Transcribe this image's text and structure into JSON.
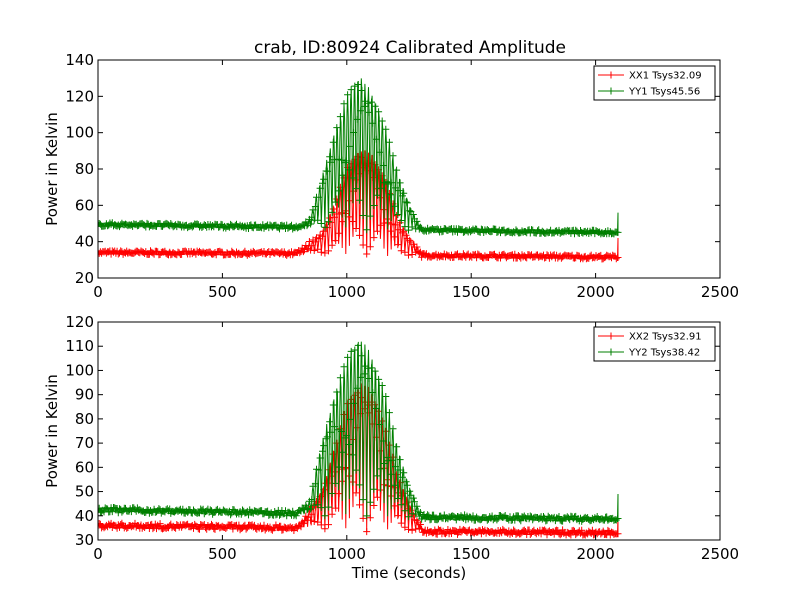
{
  "title": "crab, ID:80924 Calibrated Amplitude",
  "colors": {
    "xx": "#ff0000",
    "yy": "#007f00"
  },
  "chart_data": [
    {
      "type": "line",
      "title": "crab, ID:80924 Calibrated Amplitude",
      "xlabel": "",
      "ylabel": "Power in Kelvin",
      "xlim": [
        0,
        2500
      ],
      "ylim": [
        20,
        140
      ],
      "xticks": [
        0,
        500,
        1000,
        1500,
        2000,
        2500
      ],
      "yticks": [
        20,
        40,
        60,
        80,
        100,
        120,
        140
      ],
      "legend_position": "top-right",
      "grid": false,
      "x_range": [
        0,
        2090
      ],
      "transit_window": [
        800,
        1300
      ],
      "series": [
        {
          "name": "XX1 Tsys32.09",
          "color": "#ff0000",
          "marker": "+",
          "baseline": [
            [
              0,
              34
            ],
            [
              800,
              33.5
            ],
            [
              1300,
              32.5
            ],
            [
              2090,
              31.5
            ]
          ],
          "peak_envelope": [
            [
              800,
              34
            ],
            [
              900,
              45
            ],
            [
              950,
              60
            ],
            [
              1000,
              80
            ],
            [
              1050,
              91
            ],
            [
              1100,
              88
            ],
            [
              1150,
              75
            ],
            [
              1200,
              55
            ],
            [
              1250,
              42
            ],
            [
              1300,
              34
            ]
          ],
          "end_spike": [
            2090,
            42
          ]
        },
        {
          "name": "YY1 Tsys45.56",
          "color": "#007f00",
          "marker": "+",
          "baseline": [
            [
              0,
              49.5
            ],
            [
              800,
              48
            ],
            [
              1300,
              46.5
            ],
            [
              2090,
              45
            ]
          ],
          "peak_envelope": [
            [
              800,
              48
            ],
            [
              850,
              52
            ],
            [
              900,
              75
            ],
            [
              950,
              100
            ],
            [
              1000,
              120
            ],
            [
              1050,
              132
            ],
            [
              1100,
              122
            ],
            [
              1150,
              105
            ],
            [
              1200,
              80
            ],
            [
              1250,
              60
            ],
            [
              1300,
              47
            ]
          ],
          "end_spike": [
            2090,
            56
          ]
        }
      ]
    },
    {
      "type": "line",
      "title": "",
      "xlabel": "Time (seconds)",
      "ylabel": "Power in Kelvin",
      "xlim": [
        0,
        2500
      ],
      "ylim": [
        30,
        120
      ],
      "xticks": [
        0,
        500,
        1000,
        1500,
        2000,
        2500
      ],
      "yticks": [
        30,
        40,
        50,
        60,
        70,
        80,
        90,
        100,
        110,
        120
      ],
      "legend_position": "top-right",
      "grid": false,
      "x_range": [
        0,
        2090
      ],
      "transit_window": [
        800,
        1300
      ],
      "series": [
        {
          "name": "XX2 Tsys32.91",
          "color": "#ff0000",
          "marker": "+",
          "baseline": [
            [
              0,
              36
            ],
            [
              800,
              35
            ],
            [
              1300,
              33.5
            ],
            [
              2090,
              33
            ]
          ],
          "peak_envelope": [
            [
              800,
              35
            ],
            [
              900,
              50
            ],
            [
              950,
              68
            ],
            [
              1000,
              85
            ],
            [
              1050,
              95
            ],
            [
              1100,
              92
            ],
            [
              1150,
              78
            ],
            [
              1200,
              58
            ],
            [
              1250,
              45
            ],
            [
              1300,
              35
            ]
          ],
          "end_spike": [
            2090,
            40
          ]
        },
        {
          "name": "YY2 Tsys38.42",
          "color": "#007f00",
          "marker": "+",
          "baseline": [
            [
              0,
              42.5
            ],
            [
              800,
              41
            ],
            [
              1300,
              39.5
            ],
            [
              2090,
              38.5
            ]
          ],
          "peak_envelope": [
            [
              800,
              41
            ],
            [
              850,
              46
            ],
            [
              900,
              70
            ],
            [
              950,
              90
            ],
            [
              1000,
              105
            ],
            [
              1050,
              114
            ],
            [
              1100,
              106
            ],
            [
              1150,
              92
            ],
            [
              1200,
              70
            ],
            [
              1250,
              52
            ],
            [
              1300,
              40
            ]
          ],
          "end_spike": [
            2090,
            49
          ]
        }
      ]
    }
  ]
}
